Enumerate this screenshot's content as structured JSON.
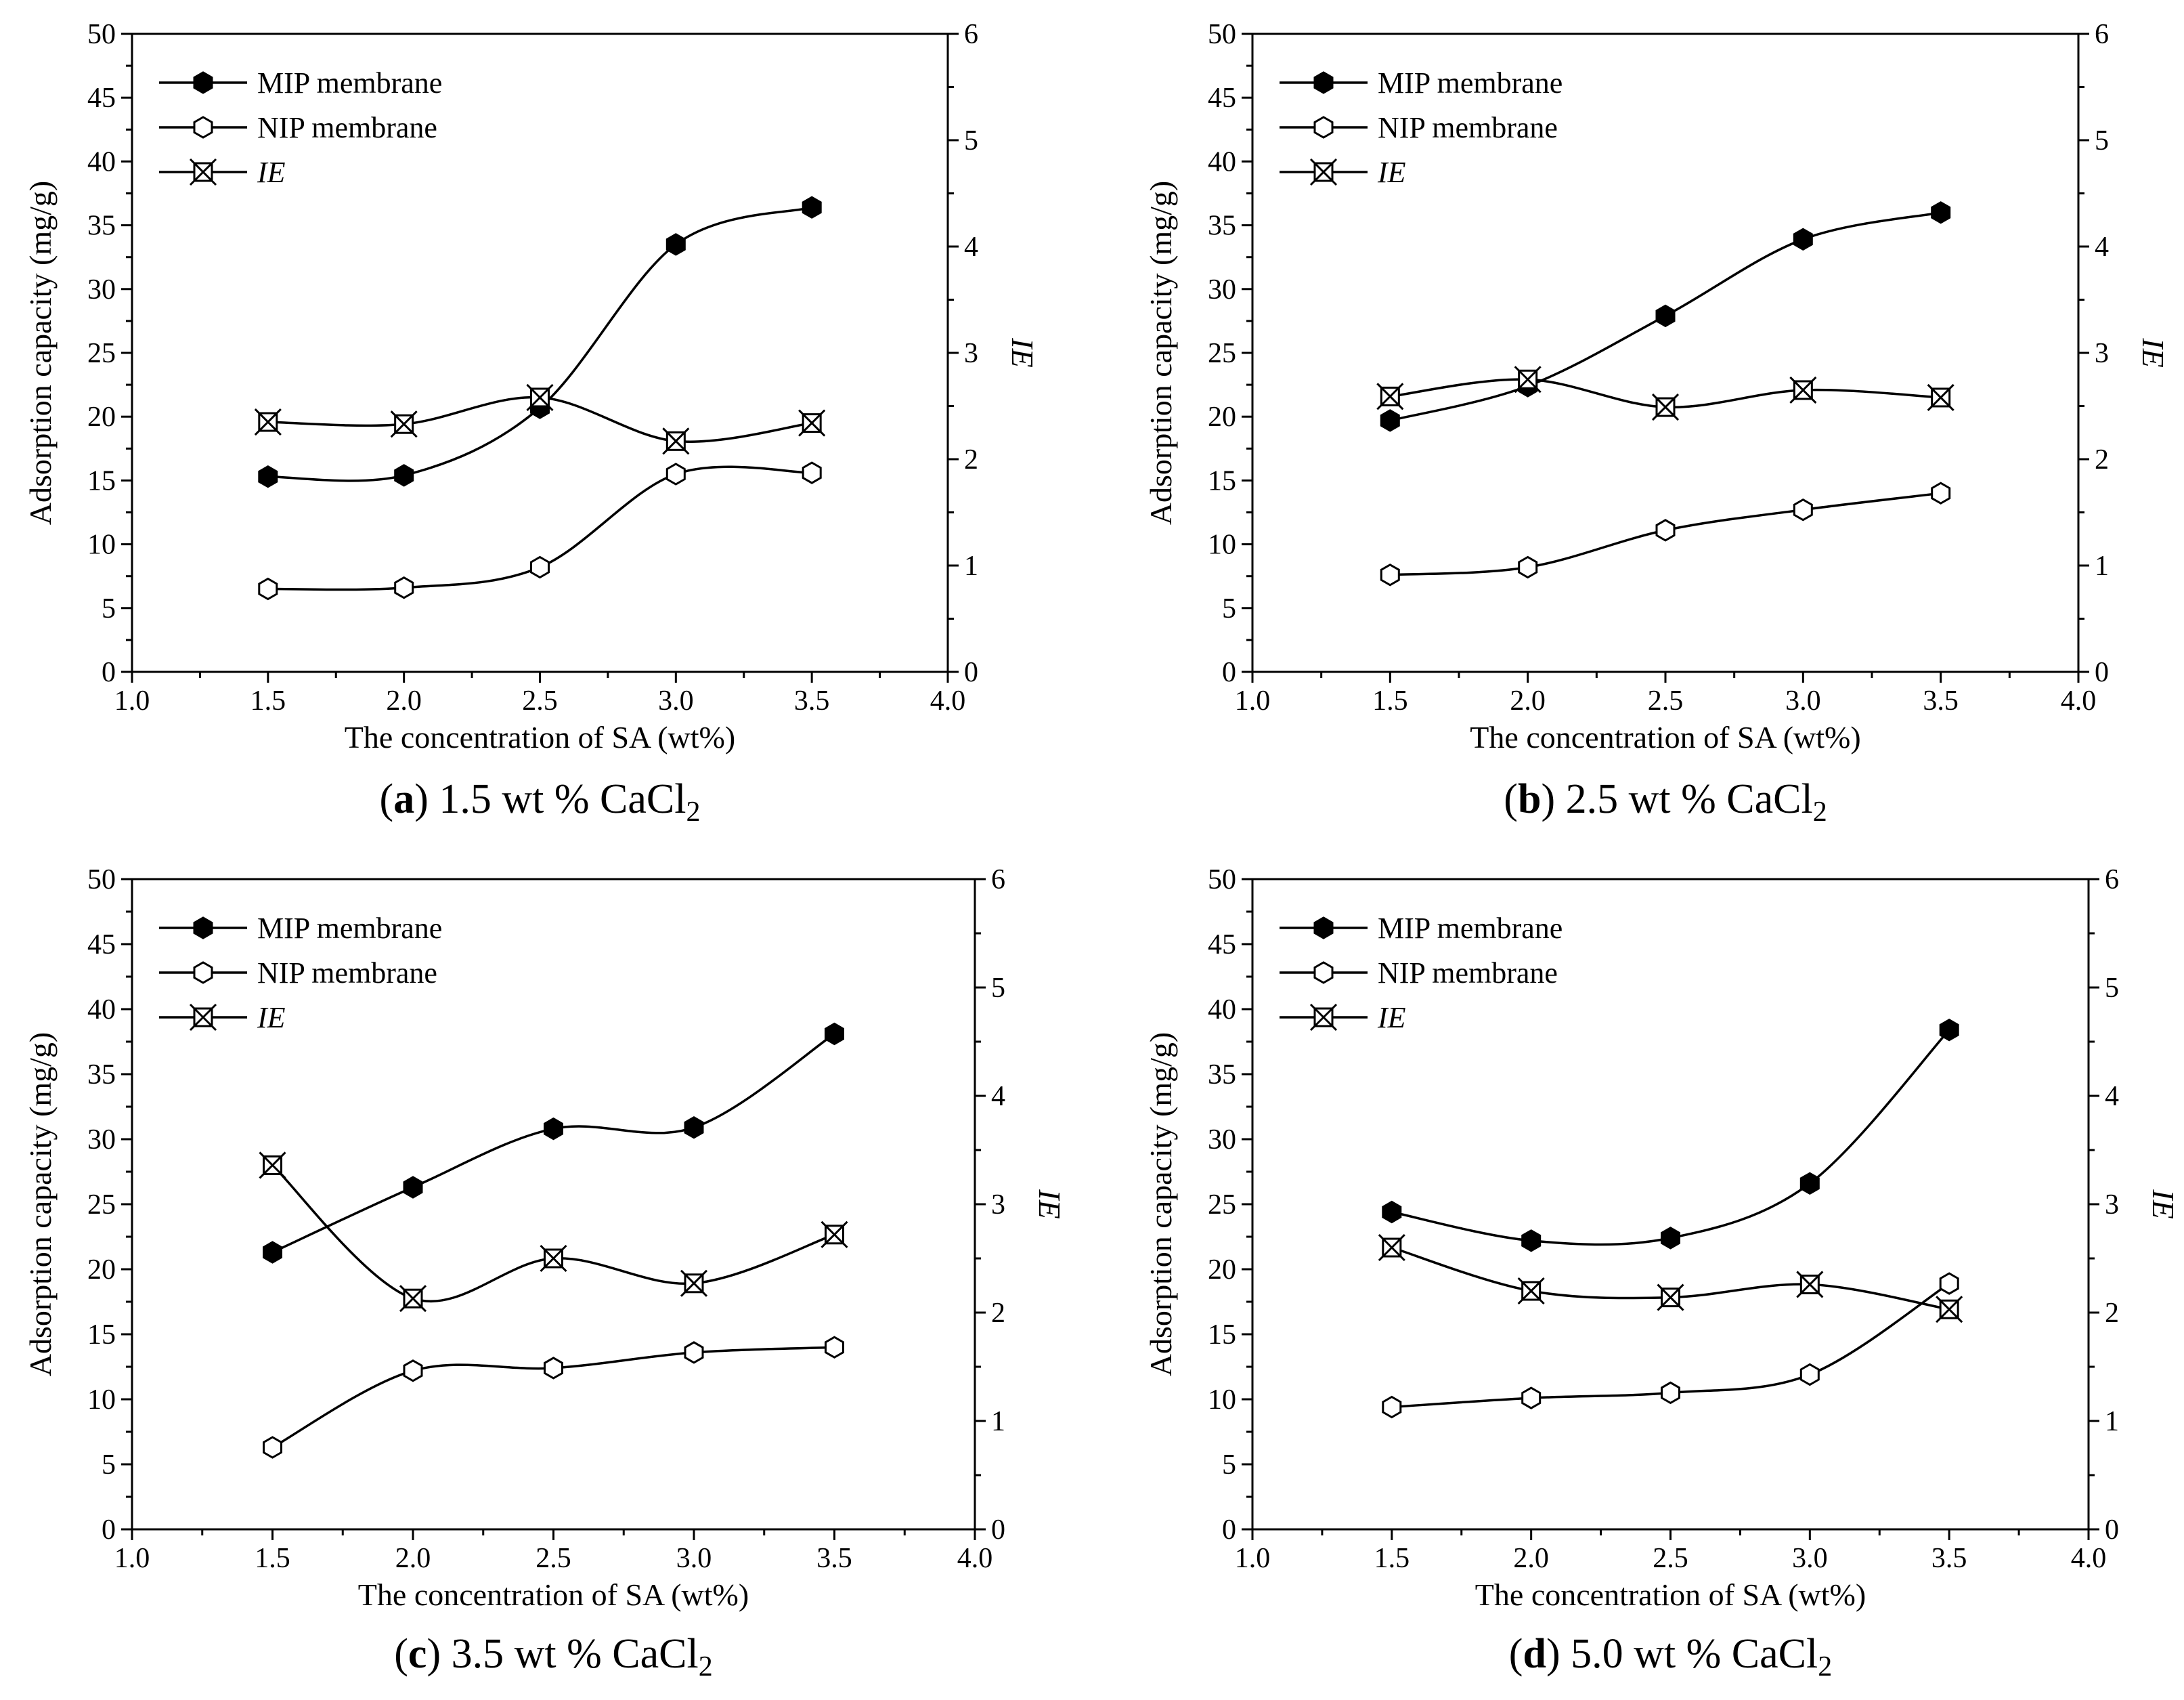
{
  "figure": {
    "series_colors": {
      "mip": "#000000",
      "nip": "#ffffff",
      "ie": "#ffffff"
    }
  },
  "chart_data": [
    {
      "type": "line",
      "panel": "a",
      "caption_letter": "a",
      "caption_text": "1.5 wt % CaCl",
      "caption_sub": "2",
      "xlabel": "The concentration of  SA (wt%)",
      "ylabel": "Adsorption capacity (mg/g)",
      "y2label": "IE",
      "xlim": [
        1.0,
        4.0
      ],
      "ylim": [
        0,
        50
      ],
      "y2lim": [
        0,
        6
      ],
      "xticks": [
        "1.0",
        "1.5",
        "2.0",
        "2.5",
        "3.0",
        "3.5",
        "4.0"
      ],
      "yticks": [
        "0",
        "5",
        "10",
        "15",
        "20",
        "25",
        "30",
        "35",
        "40",
        "45",
        "50"
      ],
      "y2ticks": [
        "0",
        "1",
        "2",
        "3",
        "4",
        "5",
        "6"
      ],
      "legend": [
        "MIP membrane",
        "NIP membrane",
        "IE"
      ],
      "legend_position": "top-left",
      "x": [
        1.5,
        2.0,
        2.5,
        3.0,
        3.5
      ],
      "series": [
        {
          "name": "MIP membrane",
          "axis": "left",
          "marker": "filled-hexagon",
          "values": [
            15.3,
            15.4,
            20.7,
            33.5,
            36.4
          ]
        },
        {
          "name": "NIP membrane",
          "axis": "left",
          "marker": "open-hexagon",
          "values": [
            6.5,
            6.6,
            8.2,
            15.5,
            15.6
          ]
        },
        {
          "name": "IE",
          "axis": "right",
          "marker": "crossed-square",
          "values": [
            2.35,
            2.33,
            2.58,
            2.17,
            2.34
          ]
        }
      ]
    },
    {
      "type": "line",
      "panel": "b",
      "caption_letter": "b",
      "caption_text": "2.5 wt % CaCl",
      "caption_sub": "2",
      "xlabel": "The concentration of  SA (wt%)",
      "ylabel": "Adsorption capacity (mg/g)",
      "y2label": "IE",
      "xlim": [
        1.0,
        4.0
      ],
      "ylim": [
        0,
        50
      ],
      "y2lim": [
        0,
        6
      ],
      "xticks": [
        "1.0",
        "1.5",
        "2.0",
        "2.5",
        "3.0",
        "3.5",
        "4.0"
      ],
      "yticks": [
        "0",
        "5",
        "10",
        "15",
        "20",
        "25",
        "30",
        "35",
        "40",
        "45",
        "50"
      ],
      "y2ticks": [
        "0",
        "1",
        "2",
        "3",
        "4",
        "5",
        "6"
      ],
      "legend": [
        "MIP membrane",
        "NIP membrane",
        "IE"
      ],
      "legend_position": "top-left",
      "x": [
        1.5,
        2.0,
        2.5,
        3.0,
        3.5
      ],
      "series": [
        {
          "name": "MIP membrane",
          "axis": "left",
          "marker": "filled-hexagon",
          "values": [
            19.7,
            22.4,
            27.9,
            33.9,
            36.0
          ]
        },
        {
          "name": "NIP membrane",
          "axis": "left",
          "marker": "open-hexagon",
          "values": [
            7.6,
            8.2,
            11.1,
            12.7,
            14.0
          ]
        },
        {
          "name": "IE",
          "axis": "right",
          "marker": "crossed-square",
          "values": [
            2.59,
            2.75,
            2.49,
            2.65,
            2.58
          ]
        }
      ]
    },
    {
      "type": "line",
      "panel": "c",
      "caption_letter": "c",
      "caption_text": "3.5 wt % CaCl",
      "caption_sub": "2",
      "xlabel": "The concentration of  SA (wt%)",
      "ylabel": "Adsorption capacity (mg/g)",
      "y2label": "IE",
      "xlim": [
        1.0,
        4.0
      ],
      "ylim": [
        0,
        50
      ],
      "y2lim": [
        0,
        6
      ],
      "xticks": [
        "1.0",
        "1.5",
        "2.0",
        "2.5",
        "3.0",
        "3.5",
        "4.0"
      ],
      "yticks": [
        "0",
        "5",
        "10",
        "15",
        "20",
        "25",
        "30",
        "35",
        "40",
        "45",
        "50"
      ],
      "y2ticks": [
        "0",
        "1",
        "2",
        "3",
        "4",
        "5",
        "6"
      ],
      "legend": [
        "MIP membrane",
        "NIP membrane",
        "IE"
      ],
      "legend_position": "top-left",
      "x": [
        1.5,
        2.0,
        2.5,
        3.0,
        3.5
      ],
      "series": [
        {
          "name": "MIP membrane",
          "axis": "left",
          "marker": "filled-hexagon",
          "values": [
            21.3,
            26.3,
            30.8,
            30.9,
            38.1
          ]
        },
        {
          "name": "NIP membrane",
          "axis": "left",
          "marker": "open-hexagon",
          "values": [
            6.3,
            12.2,
            12.4,
            13.6,
            14.0
          ]
        },
        {
          "name": "IE",
          "axis": "right",
          "marker": "crossed-square",
          "values": [
            3.36,
            2.13,
            2.5,
            2.27,
            2.72
          ]
        }
      ]
    },
    {
      "type": "line",
      "panel": "d",
      "caption_letter": "d",
      "caption_text": "5.0 wt % CaCl",
      "caption_sub": "2",
      "xlabel": "The concentration of  SA (wt%)",
      "ylabel": "Adsorption capacity (mg/g)",
      "y2label": "IE",
      "xlim": [
        1.0,
        4.0
      ],
      "ylim": [
        0,
        50
      ],
      "y2lim": [
        0,
        6
      ],
      "xticks": [
        "1.0",
        "1.5",
        "2.0",
        "2.5",
        "3.0",
        "3.5",
        "4.0"
      ],
      "yticks": [
        "0",
        "5",
        "10",
        "15",
        "20",
        "25",
        "30",
        "35",
        "40",
        "45",
        "50"
      ],
      "y2ticks": [
        "0",
        "1",
        "2",
        "3",
        "4",
        "5",
        "6"
      ],
      "legend": [
        "MIP membrane",
        "NIP membrane",
        "IE"
      ],
      "legend_position": "top-left",
      "x": [
        1.5,
        2.0,
        2.5,
        3.0,
        3.5
      ],
      "series": [
        {
          "name": "MIP membrane",
          "axis": "left",
          "marker": "filled-hexagon",
          "values": [
            24.4,
            22.2,
            22.4,
            26.6,
            38.4
          ]
        },
        {
          "name": "NIP membrane",
          "axis": "left",
          "marker": "open-hexagon",
          "values": [
            9.4,
            10.1,
            10.5,
            11.9,
            18.9
          ]
        },
        {
          "name": "IE",
          "axis": "right",
          "marker": "crossed-square",
          "values": [
            2.6,
            2.2,
            2.14,
            2.26,
            2.03
          ]
        }
      ]
    }
  ]
}
